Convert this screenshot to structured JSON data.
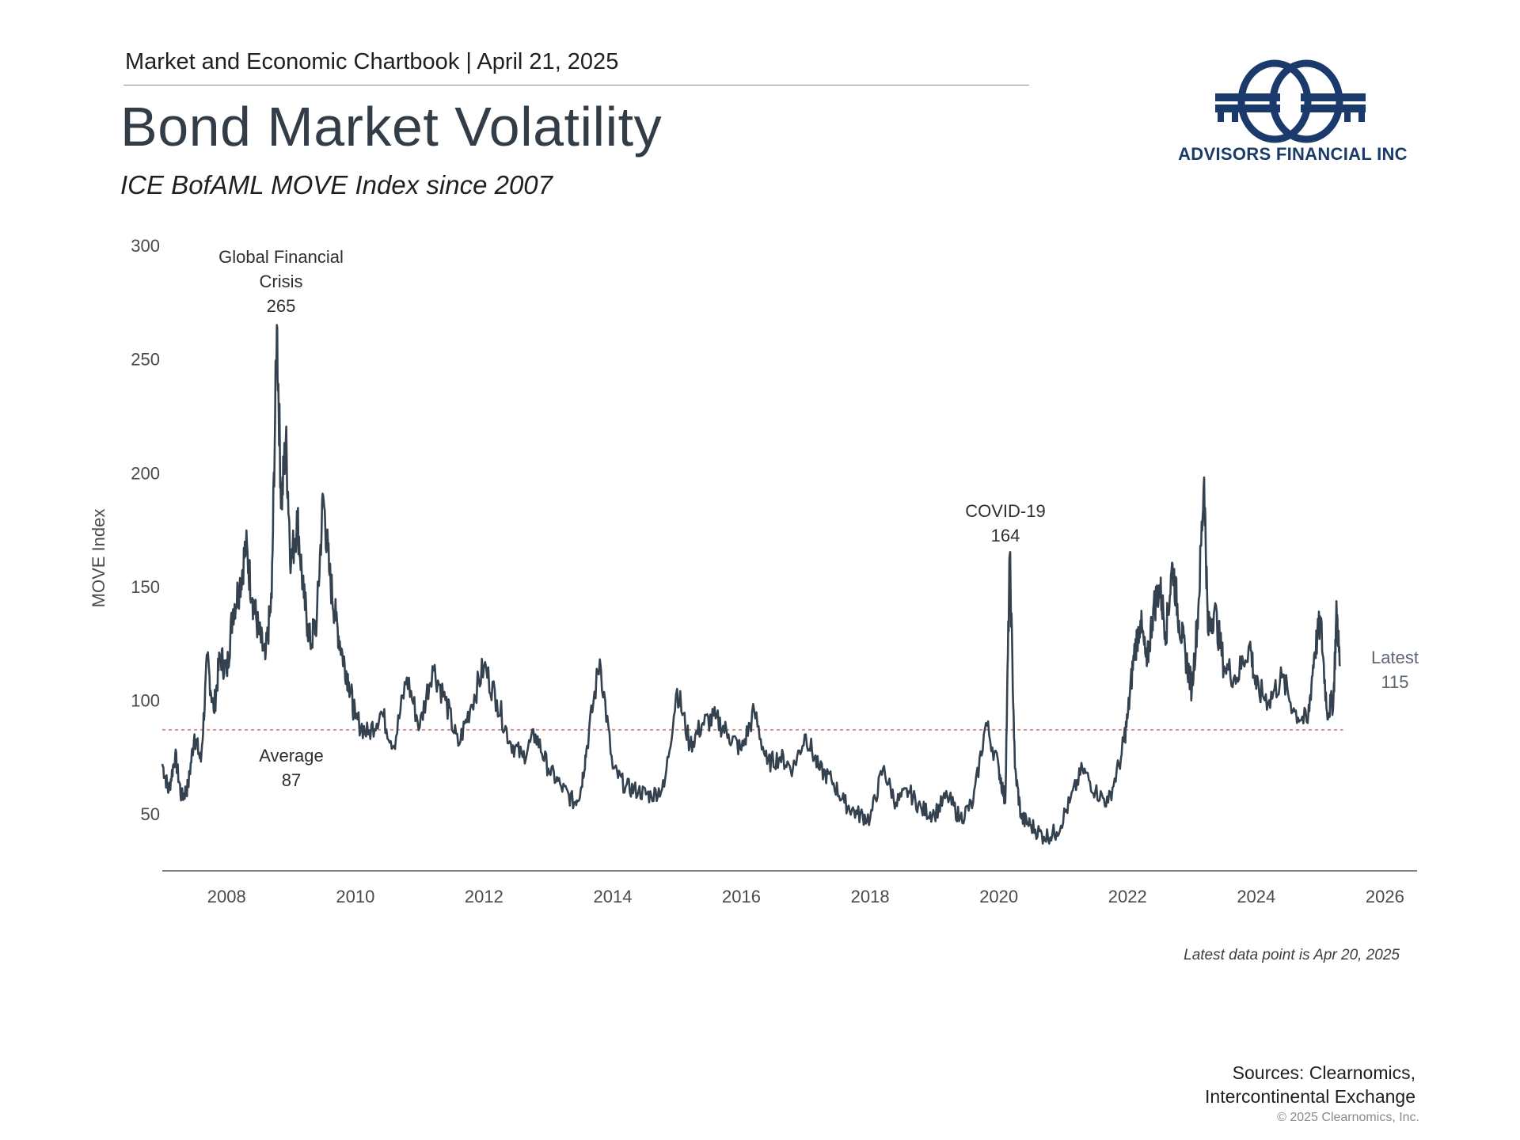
{
  "header": {
    "chartbook": "Market and Economic Chartbook | April 21, 2025",
    "title": "Bond Market Volatility",
    "subtitle": "ICE BofAML MOVE Index since 2007"
  },
  "logo": {
    "name": "ADVISORS FINANCIAL INC",
    "color": "#1a3a6b"
  },
  "chart_data": {
    "type": "line",
    "ylabel": "MOVE Index",
    "xlabel": "",
    "xlim": [
      2007.0,
      2026.5
    ],
    "ylim": [
      25,
      300
    ],
    "x_ticks": [
      "2008",
      "2010",
      "2012",
      "2014",
      "2016",
      "2018",
      "2020",
      "2022",
      "2024",
      "2026"
    ],
    "y_ticks": [
      "50",
      "100",
      "150",
      "200",
      "250",
      "300"
    ],
    "line_color": "#34414e",
    "average_line": {
      "value": 87,
      "color": "#d9909a"
    },
    "series": [
      {
        "name": "",
        "x": [
          2007.0,
          2007.1,
          2007.2,
          2007.3,
          2007.4,
          2007.5,
          2007.6,
          2007.7,
          2007.8,
          2007.9,
          2008.0,
          2008.1,
          2008.2,
          2008.3,
          2008.4,
          2008.5,
          2008.6,
          2008.7,
          2008.78,
          2008.85,
          2008.92,
          2009.0,
          2009.1,
          2009.2,
          2009.3,
          2009.4,
          2009.5,
          2009.6,
          2009.7,
          2009.8,
          2009.9,
          2010.0,
          2010.2,
          2010.4,
          2010.6,
          2010.8,
          2011.0,
          2011.2,
          2011.4,
          2011.6,
          2011.8,
          2012.0,
          2012.2,
          2012.4,
          2012.6,
          2012.8,
          2013.0,
          2013.2,
          2013.4,
          2013.5,
          2013.6,
          2013.8,
          2014.0,
          2014.2,
          2014.4,
          2014.6,
          2014.8,
          2015.0,
          2015.2,
          2015.4,
          2015.6,
          2015.8,
          2016.0,
          2016.2,
          2016.4,
          2016.6,
          2016.8,
          2017.0,
          2017.2,
          2017.4,
          2017.6,
          2017.8,
          2018.0,
          2018.2,
          2018.4,
          2018.6,
          2018.8,
          2019.0,
          2019.2,
          2019.4,
          2019.6,
          2019.8,
          2020.0,
          2020.1,
          2020.17,
          2020.25,
          2020.35,
          2020.5,
          2020.7,
          2020.9,
          2021.1,
          2021.3,
          2021.5,
          2021.7,
          2021.9,
          2022.0,
          2022.1,
          2022.2,
          2022.3,
          2022.4,
          2022.5,
          2022.6,
          2022.7,
          2022.8,
          2022.9,
          2023.0,
          2023.1,
          2023.19,
          2023.25,
          2023.35,
          2023.5,
          2023.7,
          2023.9,
          2024.0,
          2024.2,
          2024.4,
          2024.6,
          2024.8,
          2024.9,
          2025.0,
          2025.1,
          2025.2,
          2025.25,
          2025.3
        ],
        "values": [
          72,
          60,
          76,
          57,
          62,
          85,
          73,
          118,
          95,
          120,
          112,
          140,
          150,
          168,
          145,
          130,
          118,
          145,
          265,
          185,
          215,
          160,
          180,
          145,
          125,
          135,
          190,
          155,
          135,
          120,
          108,
          92,
          85,
          95,
          80,
          110,
          88,
          115,
          100,
          80,
          98,
          115,
          100,
          82,
          75,
          85,
          70,
          62,
          55,
          60,
          80,
          118,
          70,
          62,
          60,
          58,
          62,
          105,
          80,
          90,
          92,
          85,
          78,
          95,
          72,
          75,
          70,
          85,
          70,
          65,
          55,
          50,
          48,
          70,
          55,
          60,
          52,
          50,
          58,
          48,
          55,
          90,
          70,
          55,
          164,
          70,
          48,
          45,
          40,
          42,
          55,
          70,
          60,
          55,
          75,
          92,
          120,
          135,
          115,
          140,
          150,
          130,
          160,
          135,
          120,
          105,
          140,
          198,
          130,
          140,
          115,
          110,
          125,
          105,
          100,
          110,
          95,
          90,
          120,
          135,
          95,
          100,
          140,
          115
        ]
      }
    ],
    "annotations": [
      {
        "id": "gfc",
        "lines": [
          "Global Financial",
          "Crisis",
          "265"
        ],
        "x": 2008.83,
        "y": 265
      },
      {
        "id": "covid",
        "lines": [
          "COVID-19",
          "164"
        ],
        "x": 2020.17,
        "y": 164
      },
      {
        "id": "average",
        "lines": [
          "Average",
          "87"
        ],
        "x": 2008.95,
        "y": 87
      },
      {
        "id": "latest",
        "lines": [
          "Latest",
          "115"
        ],
        "x": 2025.3,
        "y": 115
      }
    ]
  },
  "footer": {
    "latest_note": "Latest data point is Apr 20, 2025",
    "sources_line1": "Sources: Clearnomics,",
    "sources_line2": "Intercontinental Exchange",
    "copyright": "© 2025 Clearnomics, Inc."
  }
}
